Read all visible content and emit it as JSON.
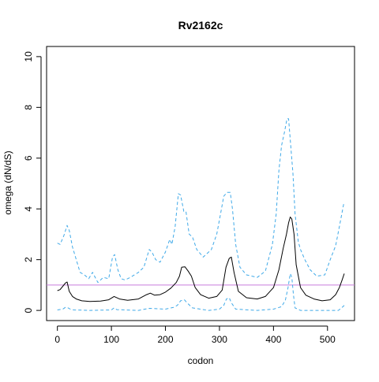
{
  "chart_data": {
    "type": "line",
    "title": "Rv2162c",
    "xlabel": "codon",
    "ylabel": "omega (dN/dS)",
    "xlim": [
      -20,
      550
    ],
    "ylim": [
      -0.4,
      10.4
    ],
    "x_ticks": [
      0,
      100,
      200,
      300,
      400,
      500
    ],
    "y_ticks": [
      0,
      2,
      4,
      6,
      8,
      10
    ],
    "grid": false,
    "reference_line": {
      "y": 1,
      "color": "#c77cdd"
    },
    "colors": {
      "estimate": "#000000",
      "interval": "#3fa9e8"
    },
    "series": [
      {
        "role": "estimate",
        "style": "solid",
        "x": [
          0,
          5,
          10,
          15,
          18,
          22,
          28,
          35,
          45,
          60,
          80,
          95,
          105,
          115,
          130,
          150,
          165,
          172,
          180,
          190,
          200,
          210,
          220,
          226,
          230,
          236,
          242,
          248,
          255,
          265,
          280,
          295,
          305,
          312,
          318,
          322,
          327,
          335,
          350,
          370,
          385,
          400,
          410,
          418,
          424,
          428,
          431,
          434,
          438,
          442,
          450,
          460,
          475,
          490,
          505,
          515,
          522,
          527,
          531
        ],
        "values": [
          0.78,
          0.82,
          0.95,
          1.08,
          1.12,
          0.75,
          0.55,
          0.45,
          0.38,
          0.35,
          0.37,
          0.42,
          0.55,
          0.45,
          0.4,
          0.45,
          0.62,
          0.68,
          0.6,
          0.62,
          0.72,
          0.88,
          1.1,
          1.35,
          1.7,
          1.72,
          1.55,
          1.35,
          0.9,
          0.62,
          0.48,
          0.55,
          0.8,
          1.7,
          2.05,
          2.1,
          1.5,
          0.75,
          0.5,
          0.45,
          0.55,
          0.9,
          1.6,
          2.45,
          3.0,
          3.45,
          3.68,
          3.6,
          3.0,
          1.8,
          0.9,
          0.6,
          0.45,
          0.38,
          0.42,
          0.62,
          0.9,
          1.2,
          1.45
        ]
      },
      {
        "role": "upper bound",
        "style": "dashed",
        "x": [
          0,
          5,
          12,
          18,
          22,
          28,
          35,
          42,
          50,
          58,
          65,
          75,
          85,
          95,
          102,
          106,
          112,
          118,
          125,
          135,
          150,
          160,
          170,
          175,
          182,
          190,
          200,
          208,
          212,
          218,
          224,
          228,
          234,
          238,
          244,
          250,
          258,
          270,
          285,
          295,
          302,
          308,
          314,
          320,
          324,
          330,
          338,
          350,
          370,
          385,
          398,
          405,
          410,
          415,
          420,
          425,
          428,
          436,
          440,
          446,
          450,
          458,
          468,
          480,
          495,
          505,
          515,
          522,
          530
        ],
        "values": [
          2.65,
          2.6,
          2.95,
          3.35,
          3.15,
          2.5,
          2.0,
          1.5,
          1.4,
          1.25,
          1.5,
          1.1,
          1.3,
          1.25,
          2.1,
          2.2,
          1.6,
          1.25,
          1.2,
          1.3,
          1.5,
          1.7,
          2.4,
          2.3,
          2.0,
          1.9,
          2.3,
          2.8,
          2.6,
          3.3,
          4.6,
          4.55,
          3.9,
          3.9,
          3.0,
          2.9,
          2.4,
          2.1,
          2.4,
          3.0,
          3.8,
          4.5,
          4.65,
          4.65,
          4.0,
          2.6,
          1.7,
          1.4,
          1.3,
          1.55,
          2.6,
          3.8,
          5.5,
          6.5,
          7.0,
          7.55,
          7.55,
          5.4,
          3.8,
          2.7,
          2.4,
          2.0,
          1.6,
          1.35,
          1.4,
          2.0,
          2.55,
          3.3,
          4.2
        ]
      },
      {
        "role": "lower bound",
        "style": "dashed",
        "x": [
          0,
          10,
          15,
          18,
          24,
          30,
          60,
          100,
          105,
          110,
          150,
          170,
          200,
          215,
          222,
          228,
          235,
          240,
          250,
          280,
          300,
          308,
          313,
          318,
          322,
          330,
          370,
          400,
          415,
          422,
          427,
          431,
          434,
          437,
          440,
          450,
          500,
          520,
          526,
          531
        ],
        "values": [
          0.02,
          0.05,
          0.12,
          0.12,
          0.05,
          0.02,
          0.0,
          0.02,
          0.1,
          0.03,
          0.0,
          0.08,
          0.05,
          0.12,
          0.2,
          0.38,
          0.42,
          0.3,
          0.1,
          0.0,
          0.05,
          0.2,
          0.45,
          0.5,
          0.3,
          0.05,
          0.0,
          0.05,
          0.15,
          0.4,
          0.9,
          1.45,
          1.3,
          0.6,
          0.1,
          0.0,
          0.0,
          0.0,
          0.1,
          0.2
        ]
      }
    ]
  }
}
